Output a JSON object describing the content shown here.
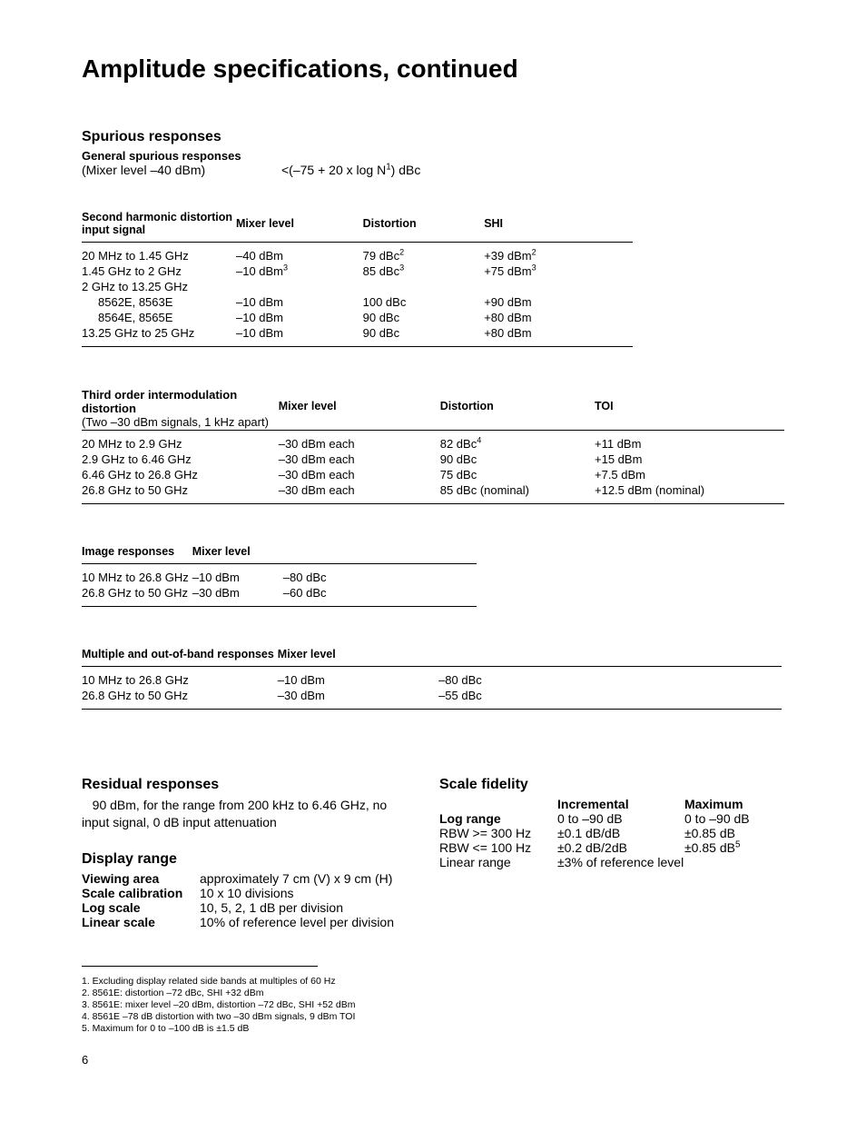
{
  "page_title": "Amplitude specifications, continued",
  "spurious": {
    "heading": "Spurious responses",
    "general_label": "General spurious responses",
    "general_cond": "(Mixer level –40 dBm)",
    "general_val_pre": "<(–75 + 20 x log N",
    "general_val_sup": "1",
    "general_val_post": ") dBc"
  },
  "shd": {
    "title1": "Second harmonic distortion",
    "title2": "input signal",
    "h_mixer": "Mixer level",
    "h_dist": "Distortion",
    "h_shi": "SHI",
    "rows": [
      {
        "sig": "20 MHz to 1.45 GHz",
        "mixer": "–40 dBm",
        "dist": "79 dBc",
        "dist_sup": "2",
        "shi": "+39 dBm",
        "shi_sup": "2"
      },
      {
        "sig": "1.45 GHz to 2 GHz",
        "mixer": "–10 dBm",
        "mixer_sup": "3",
        "dist": "85 dBc",
        "dist_sup": "3",
        "shi": "+75 dBm",
        "shi_sup": "3"
      },
      {
        "sig": "2 GHz to 13.25 GHz",
        "mixer": "",
        "dist": "",
        "shi": ""
      },
      {
        "sig": "8562E, 8563E",
        "indent": true,
        "mixer": "–10 dBm",
        "dist": "100 dBc",
        "shi": "+90 dBm"
      },
      {
        "sig": "8564E, 8565E",
        "indent": true,
        "mixer": "–10 dBm",
        "dist": "90 dBc",
        "shi": "+80 dBm"
      },
      {
        "sig": "13.25 GHz to 25 GHz",
        "mixer": "–10 dBm",
        "dist": "90 dBc",
        "shi": "+80 dBm"
      }
    ]
  },
  "toi": {
    "title": "Third order intermodulation distortion",
    "sub": "(Two –30 dBm signals,   1 kHz apart)",
    "h_mixer": "Mixer level",
    "h_dist": "Distortion",
    "h_toi": "TOI",
    "rows": [
      {
        "sig": "20 MHz to 2.9 GHz",
        "mixer": "–30 dBm each",
        "dist": "82 dBc",
        "dist_sup": "4",
        "toi": "+11 dBm"
      },
      {
        "sig": "2.9 GHz to 6.46 GHz",
        "mixer": "–30 dBm each",
        "dist": "90 dBc",
        "toi": "+15 dBm"
      },
      {
        "sig": "6.46 GHz to 26.8 GHz",
        "mixer": "–30 dBm each",
        "dist": "75 dBc",
        "toi": "+7.5 dBm"
      },
      {
        "sig": "26.8 GHz to 50 GHz",
        "mixer": "–30 dBm each",
        "dist": "85 dBc (nominal)",
        "toi": "+12.5 dBm (nominal)"
      }
    ]
  },
  "img": {
    "title": "Image responses",
    "h_mixer": "Mixer level",
    "rows": [
      {
        "sig": "10 MHz to 26.8 GHz",
        "mixer": "–10 dBm",
        "val": "–80 dBc"
      },
      {
        "sig": "26.8 GHz to 50 GHz",
        "mixer": "–30 dBm",
        "val": "–60 dBc"
      }
    ]
  },
  "mob": {
    "title": "Multiple and out-of-band responses",
    "h_mixer": "Mixer level",
    "rows": [
      {
        "sig": "10 MHz to 26.8 GHz",
        "mixer": "–10 dBm",
        "val": "–80 dBc"
      },
      {
        "sig": "26.8 GHz to 50 GHz",
        "mixer": "–30 dBm",
        "val": "–55 dBc"
      }
    ]
  },
  "residual": {
    "heading": "Residual responses",
    "text": "   90 dBm, for the range from 200 kHz to 6.46 GHz, no input signal, 0 dB input attenuation"
  },
  "display_range": {
    "heading": "Display range",
    "items": [
      {
        "k": "Viewing area",
        "v": "approximately 7 cm (V) x 9 cm (H)"
      },
      {
        "k": "Scale calibration",
        "v": "10 x 10 divisions"
      },
      {
        "k": "Log scale",
        "v": "10, 5, 2, 1 dB per division"
      },
      {
        "k": "Linear scale",
        "v": "10% of reference level per division"
      }
    ]
  },
  "scale_fidelity": {
    "heading": "Scale fidelity",
    "h_inc": "Incremental",
    "h_max": "Maximum",
    "rows": [
      {
        "l": "Log range",
        "bold": true,
        "inc": "0 to –90 dB",
        "max": "0 to –90 dB"
      },
      {
        "l": "RBW >= 300 Hz",
        "inc": "±0.1 dB/dB",
        "max": "±0.85 dB"
      },
      {
        "l": "RBW <= 100 Hz",
        "inc": "±0.2 dB/2dB",
        "max": "±0.85 dB",
        "max_sup": "5"
      },
      {
        "l": "Linear range",
        "inc": "±3% of reference level",
        "max": ""
      }
    ]
  },
  "footnotes": [
    "1.   Excluding display related side bands at multiples of 60 Hz",
    "2.   8561E: distortion –72 dBc, SHI +32 dBm",
    "3.   8561E: mixer level –20 dBm, distortion –72 dBc, SHI +52 dBm",
    "4.   8561E –78 dB distortion with two –30 dBm signals, 9 dBm TOI",
    "5.   Maximum for 0 to –100 dB is ±1.5 dB"
  ],
  "page_number": "6"
}
